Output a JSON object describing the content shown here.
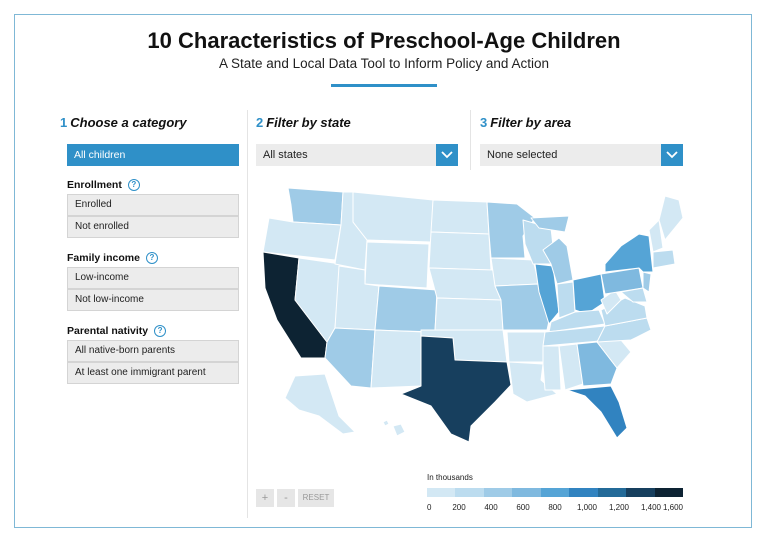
{
  "header": {
    "title": "10 Characteristics of Preschool-Age Children",
    "subtitle": "A State and Local Data Tool to Inform Policy and Action"
  },
  "steps": [
    {
      "num": "1",
      "label": "Choose a category"
    },
    {
      "num": "2",
      "label": "Filter by state"
    },
    {
      "num": "3",
      "label": "Filter by area"
    }
  ],
  "categories": {
    "selected": "All children",
    "groups": [
      {
        "heading": "Enrollment",
        "options": [
          "Enrolled",
          "Not enrolled"
        ]
      },
      {
        "heading": "Family income",
        "options": [
          "Low-income",
          "Not low-income"
        ]
      },
      {
        "heading": "Parental nativity",
        "options": [
          "All native-born parents",
          "At least one immigrant parent"
        ]
      }
    ]
  },
  "filters": {
    "state_value": "All states",
    "area_value": "None selected"
  },
  "zoom": {
    "plus": "+",
    "minus": "-",
    "reset": "RESET"
  },
  "legend": {
    "caption": "In thousands",
    "ticks": [
      "0",
      "200",
      "400",
      "600",
      "800",
      "1,000",
      "1,200",
      "1,400",
      "1,600"
    ],
    "colors": [
      "#d3e8f4",
      "#bcdcef",
      "#9fcbe7",
      "#7fb9df",
      "#55a4d6",
      "#3183c0",
      "#236a98",
      "#173f5e",
      "#0d2333"
    ]
  },
  "icons": {
    "dropdown": "chevron-down-icon",
    "help": "help-icon"
  }
}
